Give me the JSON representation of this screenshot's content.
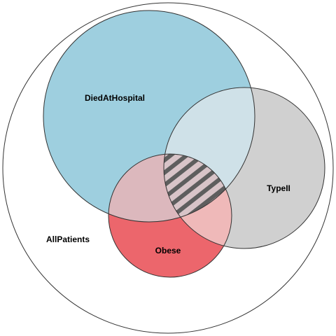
{
  "diagram": {
    "type": "venn",
    "sets": [
      {
        "id": "all",
        "label": "AllPatients",
        "color": "#ffffff"
      },
      {
        "id": "died",
        "label": "DiedAtHospital",
        "color": "#9ecfdf"
      },
      {
        "id": "type2",
        "label": "TypeII",
        "color": "#d0d0d0"
      },
      {
        "id": "obese",
        "label": "Obese",
        "color": "#ec666c"
      }
    ],
    "intersection_colors": {
      "died_type2": "#cfe1e8",
      "died_obese": "#dcb8bd",
      "type2_obese": "#efb9b9",
      "all_three_pattern": "hatched"
    },
    "stroke_color": "#333333"
  }
}
